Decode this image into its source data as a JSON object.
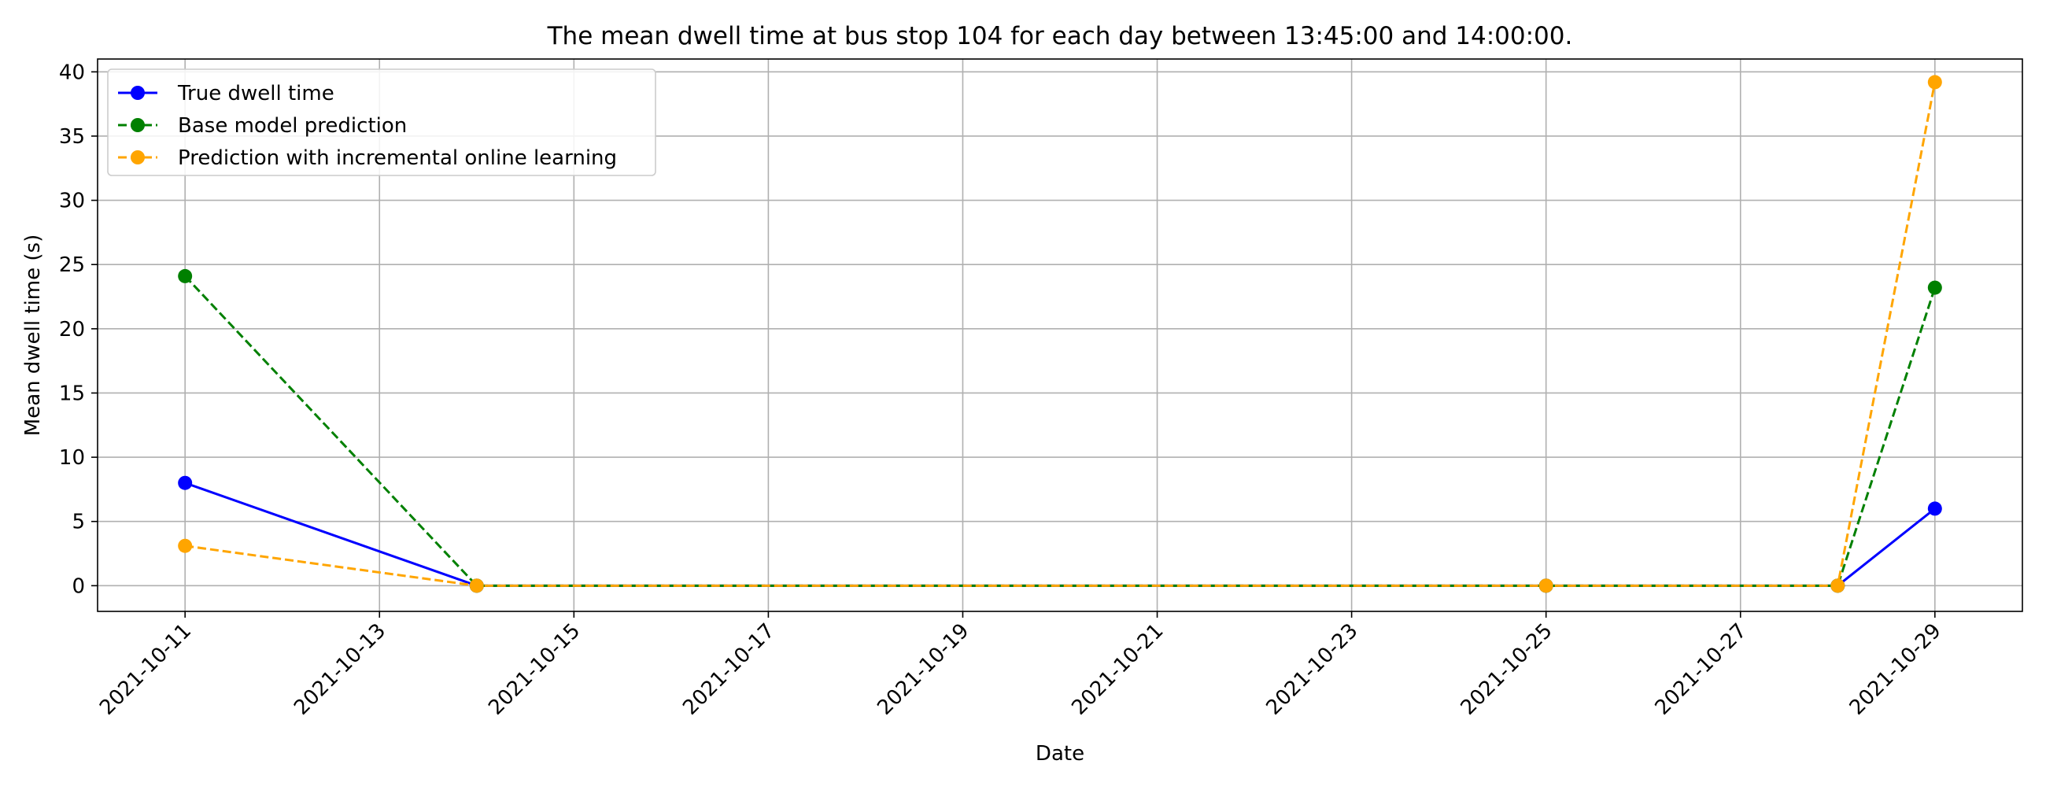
{
  "chart_data": {
    "type": "line",
    "title": "The mean dwell time at bus stop 104 for each day between 13:45:00 and 14:00:00.",
    "xlabel": "Date",
    "ylabel": "Mean dwell time (s)",
    "x": [
      "2021-10-11",
      "2021-10-14",
      "2021-10-25",
      "2021-10-28",
      "2021-10-29"
    ],
    "x_day_offsets": [
      0,
      3,
      14,
      17,
      18
    ],
    "xlim_days": [
      -0.9,
      18.9
    ],
    "ylim": [
      -2,
      41
    ],
    "xticks": [
      "2021-10-11",
      "2021-10-13",
      "2021-10-15",
      "2021-10-17",
      "2021-10-19",
      "2021-10-21",
      "2021-10-23",
      "2021-10-25",
      "2021-10-27",
      "2021-10-29"
    ],
    "xtick_day_offsets": [
      0,
      2,
      4,
      6,
      8,
      10,
      12,
      14,
      16,
      18
    ],
    "yticks": [
      0,
      5,
      10,
      15,
      20,
      25,
      30,
      35,
      40
    ],
    "ytick_labels": [
      "0",
      "5",
      "10",
      "15",
      "20",
      "25",
      "30",
      "35",
      "40"
    ],
    "grid": true,
    "legend_position": "top-left",
    "series": [
      {
        "name": "True dwell time",
        "values": [
          8.0,
          0.0,
          0.0,
          0.0,
          6.0
        ],
        "color": "#0000ff",
        "style": "solid"
      },
      {
        "name": "Base model prediction",
        "values": [
          24.1,
          0.0,
          0.0,
          0.0,
          23.2
        ],
        "color": "#008000",
        "style": "dashed"
      },
      {
        "name": "Prediction with incremental online learning",
        "values": [
          3.1,
          0.0,
          0.0,
          0.0,
          39.2
        ],
        "color": "#ffa500",
        "style": "dashed"
      }
    ]
  }
}
